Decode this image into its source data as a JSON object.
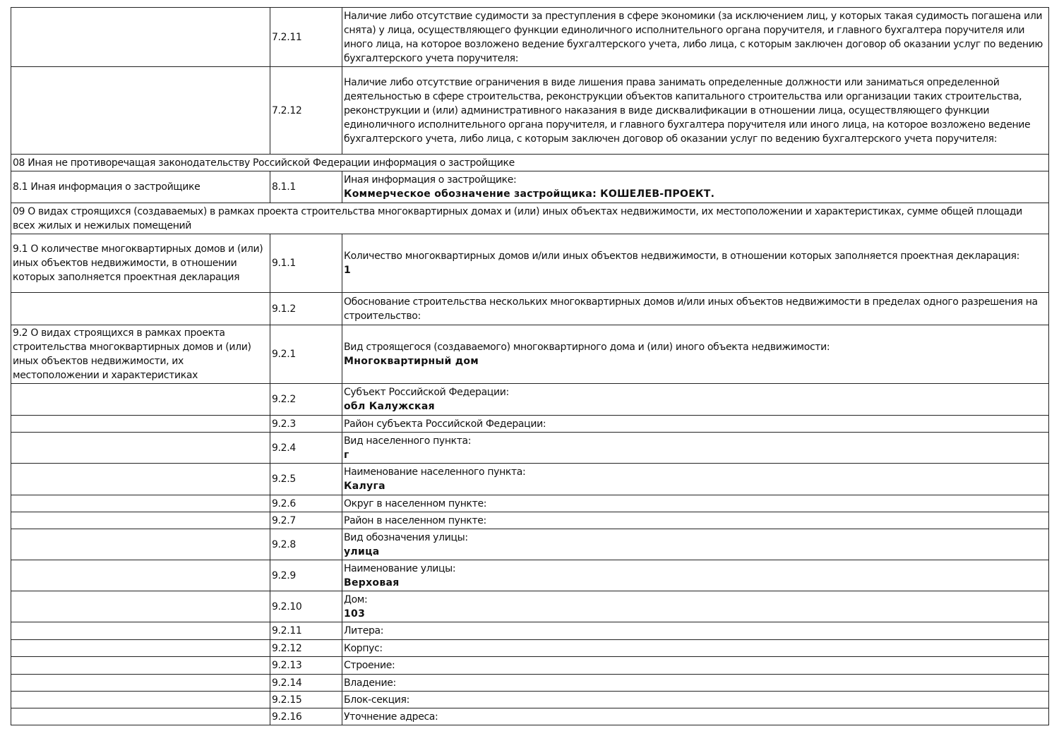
{
  "rows": [
    {
      "type": "item",
      "section": "",
      "code": "7.2.11",
      "text": "Наличие либо отсутствие судимости за преступления в сфере экономики (за исключением лиц, у которых такая судимость погашена или снята) у лица, осуществляющего функции единоличного исполнительного органа поручителя, и главного бухгалтера поручителя или иного лица, на которое возложено ведение бухгалтерского учета, либо лица, с которым заключен договор об оказании услуг по ведению бухгалтерского учета поручителя:",
      "value": ""
    },
    {
      "type": "item",
      "section": "",
      "code": "7.2.12",
      "text": "Наличие либо отсутствие ограничения в виде лишения права занимать определенные должности или заниматься определенной деятельностью в сфере строительства, реконструкции объектов капитального строительства или организации таких строительства, реконструкции и (или) административного наказания в виде дисквалификации в отношении лица, осуществляющего функции единоличного исполнительного органа поручителя, и главного бухгалтера поручителя или иного лица, на которое возложено ведение бухгалтерского учета, либо лица, с которым заключен договор об оказании услуг по ведению бухгалтерского учета поручителя:",
      "value": ""
    },
    {
      "type": "header",
      "text": "08 Иная не противоречащая законодательству Российской Федерации информация о застройщике"
    },
    {
      "type": "item",
      "section": "8.1 Иная информация о застройщике",
      "code": "8.1.1",
      "text": "Иная информация о застройщике:",
      "value": "Коммерческое обозначение застройщика: КОШЕЛЕВ-ПРОЕКТ."
    },
    {
      "type": "header",
      "text": "09 О видах строящихся (создаваемых) в рамках проекта строительства многоквартирных домах и (или) иных объектах недвижимости, их местоположении и характеристиках, сумме общей площади всех жилых и нежилых помещений"
    },
    {
      "type": "item",
      "section": "9.1 О количестве многоквартирных домов и (или) иных объектов недвижимости, в отношении которых заполняется проектная декларация",
      "code": "9.1.1",
      "text": "Количество многоквартирных домов и/или иных объектов недвижимости, в отношении которых заполняется проектная декларация:",
      "value": "1"
    },
    {
      "type": "item",
      "section": "",
      "code": "9.1.2",
      "text": "Обоснование строительства нескольких многоквартирных домов и/или иных объектов недвижимости в пределах одного разрешения на строительство:",
      "value": ""
    },
    {
      "type": "item",
      "section": "9.2 О видах строящихся в рамках проекта строительства многоквартирных домов и (или) иных объектов недвижимости, их местоположении и характеристиках",
      "code": "9.2.1",
      "text": "Вид строящегося (создаваемого) многоквартирного дома и (или) иного объекта недвижимости:",
      "value": "Многоквартирный дом"
    },
    {
      "type": "item",
      "section": "",
      "code": "9.2.2",
      "text": "Субъект Российской Федерации:",
      "value": "обл Калужская"
    },
    {
      "type": "item",
      "section": "",
      "code": "9.2.3",
      "text": "Район субъекта Российской Федерации:",
      "value": ""
    },
    {
      "type": "item",
      "section": "",
      "code": "9.2.4",
      "text": "Вид населенного пункта:",
      "value": "г"
    },
    {
      "type": "item",
      "section": "",
      "code": "9.2.5",
      "text": "Наименование населенного пункта:",
      "value": "Калуга"
    },
    {
      "type": "item",
      "section": "",
      "code": "9.2.6",
      "text": "Округ в населенном пункте:",
      "value": ""
    },
    {
      "type": "item",
      "section": "",
      "code": "9.2.7",
      "text": "Район в населенном пункте:",
      "value": ""
    },
    {
      "type": "item",
      "section": "",
      "code": "9.2.8",
      "text": "Вид обозначения улицы:",
      "value": "улица"
    },
    {
      "type": "item",
      "section": "",
      "code": "9.2.9",
      "text": "Наименование улицы:",
      "value": "Верховая"
    },
    {
      "type": "item",
      "section": "",
      "code": "9.2.10",
      "text": "Дом:",
      "value": "103"
    },
    {
      "type": "item",
      "section": "",
      "code": "9.2.11",
      "text": "Литера:",
      "value": ""
    },
    {
      "type": "item",
      "section": "",
      "code": "9.2.12",
      "text": "Корпус:",
      "value": ""
    },
    {
      "type": "item",
      "section": "",
      "code": "9.2.13",
      "text": "Строение:",
      "value": ""
    },
    {
      "type": "item",
      "section": "",
      "code": "9.2.14",
      "text": "Владение:",
      "value": ""
    },
    {
      "type": "item",
      "section": "",
      "code": "9.2.15",
      "text": "Блок-секция:",
      "value": ""
    },
    {
      "type": "item",
      "section": "",
      "code": "9.2.16",
      "text": "Уточнение адреса:",
      "value": ""
    }
  ]
}
